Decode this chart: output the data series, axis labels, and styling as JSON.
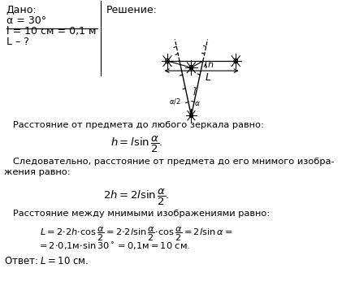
{
  "bg_color": "#ffffff",
  "left_block": {
    "given_title": "Дано:",
    "line1": "α = 30°",
    "line2": "l = 10 см = 0,1 м",
    "line3": "L – ?"
  },
  "right_block_title": "Решение:",
  "formula1": "$h = l\\sin\\dfrac{\\alpha}{2}.$",
  "formula2": "$2h = 2l\\sin\\dfrac{\\alpha}{2}.$",
  "formula3_line1": "$L = 2{\\cdot}2h{\\cdot}\\cos\\dfrac{\\alpha}{2} = 2{\\cdot}2l\\sin\\dfrac{\\alpha}{2}{\\cdot}\\cos\\dfrac{\\alpha}{2} = 2l\\sin\\alpha =$",
  "formula3_line2": "$= 2{\\cdot}0{,}1\\text{м}{\\cdot}\\sin 30^\\circ = 0{,}1\\text{м} = 10\\text{ см}.$",
  "answer": "Ответ: $L = 10$ см.",
  "para1": "   Расстояние от предмета до любого зеркала равно:",
  "para2a": "   Следовательно, расстояние от предмета до его мнимого изобра-",
  "para2b": "жения равно:",
  "para3": "   Расстояние между мнимыми изображениями равно:"
}
